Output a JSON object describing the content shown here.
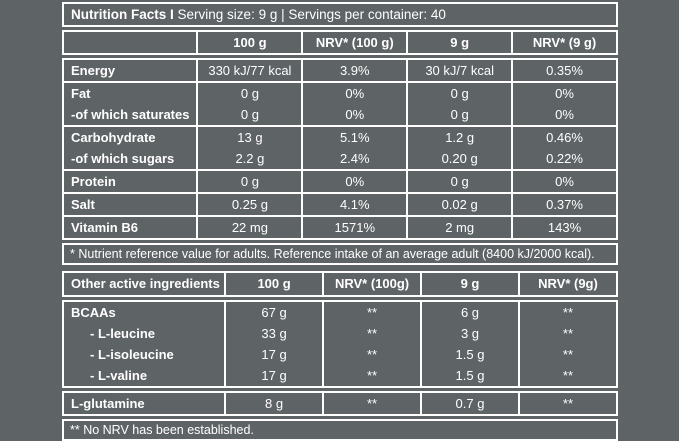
{
  "colors": {
    "background": "#5e6366",
    "line": "#ffffff",
    "text": "#ffffff"
  },
  "table1": {
    "title_bold": "Nutrition Facts I",
    "title_rest": "Serving size: 9 g | Servings per container: 40",
    "headers": [
      "",
      "100 g",
      "NRV* (100 g)",
      "9 g",
      "NRV* (9 g)"
    ],
    "rows": [
      [
        "Energy",
        "330 kJ/77 kcal",
        "3.9%",
        "30 kJ/7 kcal",
        "0.35%"
      ],
      [
        "Fat",
        "0 g",
        "0%",
        "0 g",
        "0%"
      ],
      [
        "-of which saturates",
        "0 g",
        "0%",
        "0 g",
        "0%"
      ],
      [
        "Carbohydrate",
        "13 g",
        "5.1%",
        "1.2 g",
        "0.46%"
      ],
      [
        "-of which sugars",
        "2.2 g",
        "2.4%",
        "0.20 g",
        "0.22%"
      ],
      [
        "Protein",
        "0 g",
        "0%",
        "0 g",
        "0%"
      ],
      [
        "Salt",
        "0.25 g",
        "4.1%",
        "0.02 g",
        "0.37%"
      ],
      [
        "Vitamin B6",
        "22 mg",
        "1571%",
        "2 mg",
        "143%"
      ]
    ],
    "footnote": "* Nutrient reference value for adults. Reference intake of an average adult (8400 kJ/2000 kcal)."
  },
  "table2": {
    "headers": [
      "Other active ingredients",
      "100 g",
      "NRV* (100g)",
      "9 g",
      "NRV* (9g)"
    ],
    "rows": [
      [
        "BCAAs",
        "67 g",
        "**",
        "6 g",
        "**"
      ],
      [
        "- L-leucine",
        "33 g",
        "**",
        "3 g",
        "**"
      ],
      [
        "- L-isoleucine",
        "17 g",
        "**",
        "1.5 g",
        "**"
      ],
      [
        "- L-valine",
        "17 g",
        "**",
        "1.5 g",
        "**"
      ],
      [
        "L-glutamine",
        "8 g",
        "**",
        "0.7 g",
        "**"
      ]
    ],
    "footnote": "** No NRV has been established."
  }
}
